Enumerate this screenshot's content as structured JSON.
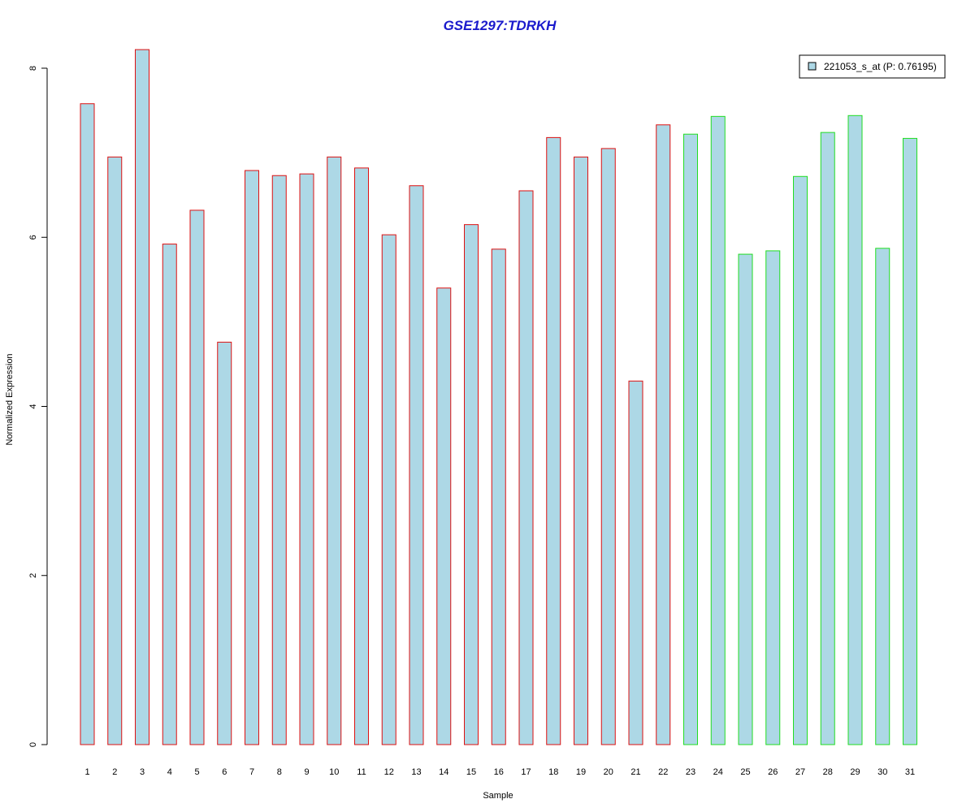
{
  "chart_data": {
    "type": "bar",
    "title": "GSE1297:TDRKH",
    "xlabel": "Sample",
    "ylabel": "Normalized Expression",
    "ylim": [
      0,
      8.25
    ],
    "yticks": [
      "0",
      "2",
      "4",
      "6",
      "8"
    ],
    "categories": [
      "1",
      "2",
      "3",
      "4",
      "5",
      "6",
      "7",
      "8",
      "9",
      "10",
      "11",
      "12",
      "13",
      "14",
      "15",
      "16",
      "17",
      "18",
      "19",
      "20",
      "21",
      "22",
      "23",
      "24",
      "25",
      "26",
      "27",
      "28",
      "29",
      "30",
      "31"
    ],
    "values": [
      7.58,
      6.95,
      8.22,
      5.92,
      6.32,
      4.76,
      6.79,
      6.73,
      6.75,
      6.95,
      6.82,
      6.03,
      6.61,
      5.4,
      6.15,
      5.86,
      6.55,
      7.18,
      6.95,
      7.05,
      4.3,
      7.33,
      7.22,
      7.43,
      5.8,
      5.84,
      6.72,
      7.24,
      7.44,
      5.87,
      7.17
    ],
    "groups": [
      "red",
      "red",
      "red",
      "red",
      "red",
      "red",
      "red",
      "red",
      "red",
      "red",
      "red",
      "red",
      "red",
      "red",
      "red",
      "red",
      "red",
      "red",
      "red",
      "red",
      "red",
      "red",
      "green",
      "green",
      "green",
      "green",
      "green",
      "green",
      "green",
      "green",
      "green"
    ],
    "group_colors": {
      "red": "#dd1111",
      "green": "#22dd22"
    },
    "fill_color": "#add8e6",
    "title_color": "#1a1acc",
    "legend": {
      "label": "221053_s_at (P: 0.76195)",
      "position": "top-right"
    },
    "grid": false
  }
}
